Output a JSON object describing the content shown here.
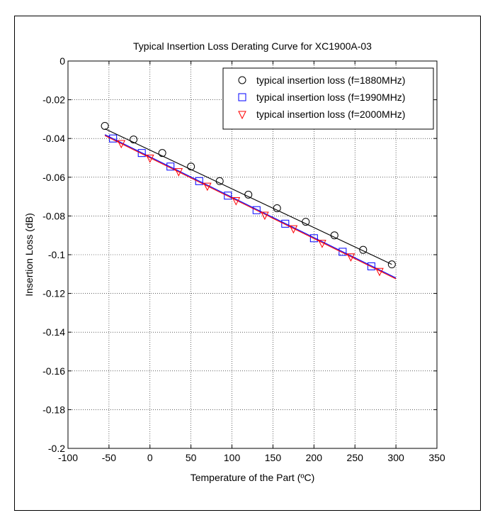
{
  "chart_data": {
    "type": "line",
    "title": "Typical Insertion Loss Derating Curve for XC1900A-03",
    "xlabel": "Temperature of the Part (ºC)",
    "ylabel": "Insertion Loss (dB)",
    "xlim": [
      -100,
      350
    ],
    "ylim": [
      -0.2,
      0
    ],
    "xticks": [
      -100,
      -50,
      0,
      50,
      100,
      150,
      200,
      250,
      300,
      350
    ],
    "xtick_labels": [
      "-100",
      "-50",
      "0",
      "50",
      "100",
      "150",
      "200",
      "250",
      "300",
      "350"
    ],
    "yticks": [
      -0.2,
      -0.18,
      -0.16,
      -0.14,
      -0.12,
      -0.1,
      -0.08,
      -0.06,
      -0.04,
      -0.02,
      0
    ],
    "ytick_labels": [
      "-0.2",
      "-0.18",
      "-0.16",
      "-0.14",
      "-0.12",
      "-0.1",
      "-0.08",
      "-0.06",
      "-0.04",
      "-0.02",
      "0"
    ],
    "grid": true,
    "legend_position": "top-right",
    "series": [
      {
        "name": "typical insertion loss (f=1880MHz)",
        "marker": "circle",
        "color": "#000000",
        "fit_x": [
          -55,
          295
        ],
        "fit_y": [
          -0.035,
          -0.105
        ],
        "x": [
          -55,
          -20,
          15,
          50,
          85,
          120,
          155,
          190,
          225,
          260,
          295
        ],
        "y": [
          -0.0335,
          -0.0405,
          -0.0475,
          -0.0545,
          -0.062,
          -0.069,
          -0.076,
          -0.083,
          -0.09,
          -0.0975,
          -0.105
        ]
      },
      {
        "name": "typical insertion loss (f=1990MHz)",
        "marker": "square",
        "color": "#0000ff",
        "fit_x": [
          -55,
          300
        ],
        "fit_y": [
          -0.038,
          -0.112
        ],
        "x": [
          -45,
          -10,
          25,
          60,
          95,
          130,
          165,
          200,
          235,
          270
        ],
        "y": [
          -0.04,
          -0.0475,
          -0.0545,
          -0.062,
          -0.0695,
          -0.077,
          -0.084,
          -0.0915,
          -0.0985,
          -0.106
        ]
      },
      {
        "name": "typical insertion loss (f=2000MHz)",
        "marker": "triangle-down",
        "color": "#ff0000",
        "fit_x": [
          -55,
          300
        ],
        "fit_y": [
          -0.0385,
          -0.1125
        ],
        "x": [
          -35,
          0,
          35,
          70,
          105,
          140,
          175,
          210,
          245,
          280
        ],
        "y": [
          -0.0425,
          -0.05,
          -0.057,
          -0.0645,
          -0.072,
          -0.0795,
          -0.0865,
          -0.094,
          -0.101,
          -0.1085
        ]
      }
    ]
  }
}
